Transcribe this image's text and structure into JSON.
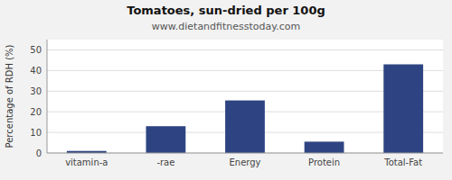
{
  "chart_data": {
    "type": "bar",
    "title": "Tomatoes, sun-dried per 100g",
    "subtitle": "www.dietandfitnesstoday.com",
    "categories": [
      "vitamin-a",
      "-rae",
      "Energy",
      "Protein",
      "Total-Fat"
    ],
    "values": [
      1,
      13,
      25.5,
      5.5,
      43
    ],
    "color": "#2e4482",
    "ylabel": "Percentage of RDH (%)",
    "ylim": [
      0,
      55
    ],
    "yticks": [
      0,
      10,
      20,
      30,
      40,
      50
    ],
    "grid": true
  }
}
